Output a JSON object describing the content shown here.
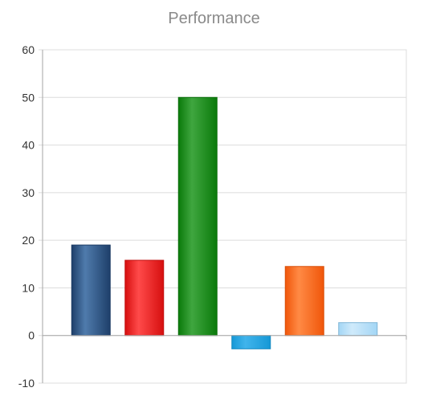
{
  "chart_data": {
    "type": "bar",
    "title": "Performance",
    "xlabel": "",
    "ylabel": "",
    "ylim": [
      -10,
      60
    ],
    "yticks": [
      -10,
      0,
      10,
      20,
      30,
      40,
      50,
      60
    ],
    "grid": true,
    "legend": "none",
    "values": [
      19,
      15.8,
      50,
      -2.8,
      14.5,
      2.7
    ],
    "colors": [
      {
        "light": "#4f7bac",
        "dark": "#1e3f6a",
        "stroke": "#1b3a63"
      },
      {
        "light": "#ff4a4a",
        "dark": "#d60f0f",
        "stroke": "#c01010"
      },
      {
        "light": "#3fa63f",
        "dark": "#0a7a0a",
        "stroke": "#0a6e0a"
      },
      {
        "light": "#40b4ec",
        "dark": "#1598d6",
        "stroke": "#1488c0"
      },
      {
        "light": "#ff8a45",
        "dark": "#f0560a",
        "stroke": "#d8500c"
      },
      {
        "light": "#cfeafb",
        "dark": "#a3d6f5",
        "stroke": "#7fb5d6"
      }
    ]
  }
}
